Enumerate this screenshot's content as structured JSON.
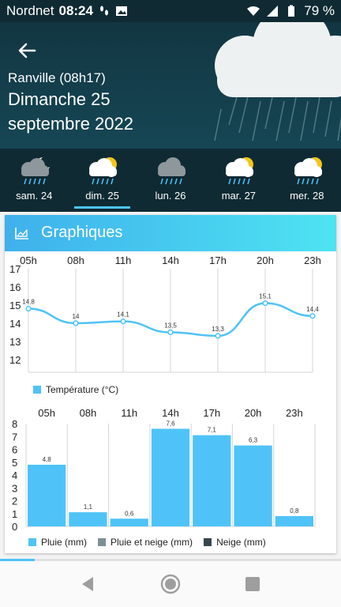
{
  "status": {
    "carrier": "Nordnet",
    "time": "08:24",
    "battery": "79 %"
  },
  "header": {
    "back_icon": "arrow-left-icon",
    "city": "Ranville (08h17)",
    "date_line1": "Dimanche 25",
    "date_line2": "septembre 2022"
  },
  "days": [
    {
      "label": "sam. 24",
      "icon": "cloud-moon-rain-icon"
    },
    {
      "label": "dim. 25",
      "icon": "cloud-sun-rain-icon"
    },
    {
      "label": "lun. 26",
      "icon": "cloud-rain-icon"
    },
    {
      "label": "mar. 27",
      "icon": "cloud-sun-rain-icon"
    },
    {
      "label": "mer. 28",
      "icon": "cloud-sun-rain-icon"
    }
  ],
  "card": {
    "title": "Graphiques",
    "icon": "area-chart-icon"
  },
  "colors": {
    "accent": "#4fc3f7",
    "dark": "#0f2a33",
    "rain": "#4fc3f7",
    "sleet": "#7f8f96",
    "snow": "#37474f"
  },
  "chart_data": [
    {
      "type": "line",
      "x": [
        "05h",
        "08h",
        "11h",
        "14h",
        "17h",
        "20h",
        "23h"
      ],
      "series": [
        {
          "name": "Température (°C)",
          "values": [
            14.8,
            14,
            14.1,
            13.5,
            13.3,
            15.1,
            14.4
          ],
          "labels": [
            "14,8",
            "14",
            "14,1",
            "13,5",
            "13,3",
            "15,1",
            "14,4"
          ]
        }
      ],
      "yticks": [
        12,
        13,
        14,
        15,
        16,
        17
      ],
      "ylim": [
        11.3,
        17
      ],
      "legend": "bottom-left"
    },
    {
      "type": "bar",
      "categories": [
        "05h",
        "08h",
        "11h",
        "14h",
        "17h",
        "20h",
        "23h"
      ],
      "series": [
        {
          "name": "Pluie (mm)",
          "values": [
            4.8,
            1.1,
            0.6,
            7.6,
            7.1,
            6.3,
            0.8
          ],
          "labels": [
            "4,8",
            "1,1",
            "0,6",
            "7,6",
            "7,1",
            "6,3",
            "0,8"
          ]
        },
        {
          "name": "Pluie et neige (mm)",
          "values": [
            0,
            0,
            0,
            0,
            0,
            0,
            0
          ]
        },
        {
          "name": "Neige (mm)",
          "values": [
            0,
            0,
            0,
            0,
            0,
            0,
            0
          ]
        }
      ],
      "yticks": [
        0,
        1,
        2,
        3,
        4,
        5,
        6,
        7,
        8
      ],
      "ylim": [
        0,
        8
      ],
      "legend": "bottom-left"
    }
  ]
}
